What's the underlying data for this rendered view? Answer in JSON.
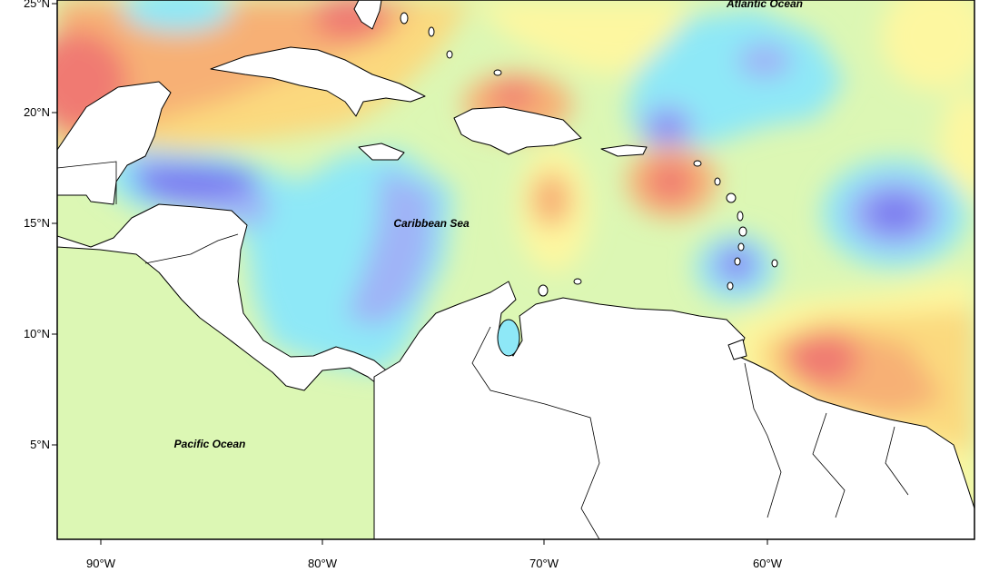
{
  "map": {
    "place_labels": {
      "atlantic": "Atlantic Ocean",
      "caribbean": "Caribbean Sea",
      "pacific": "Pacific Ocean"
    },
    "lat_ticks": [
      "25°N",
      "20°N",
      "15°N",
      "10°N",
      "5°N"
    ],
    "lon_ticks": [
      "90°W",
      "80°W",
      "70°W",
      "60°W"
    ],
    "colors": {
      "background_field": "#dcf7b4",
      "land": "#ffffff",
      "coastline": "#000000",
      "scale": [
        "#7b7cf0",
        "#9fb4f7",
        "#8ee8f7",
        "#dcf7b4",
        "#fdf7a0",
        "#fbd97e",
        "#f7b074",
        "#f07a72"
      ]
    }
  }
}
